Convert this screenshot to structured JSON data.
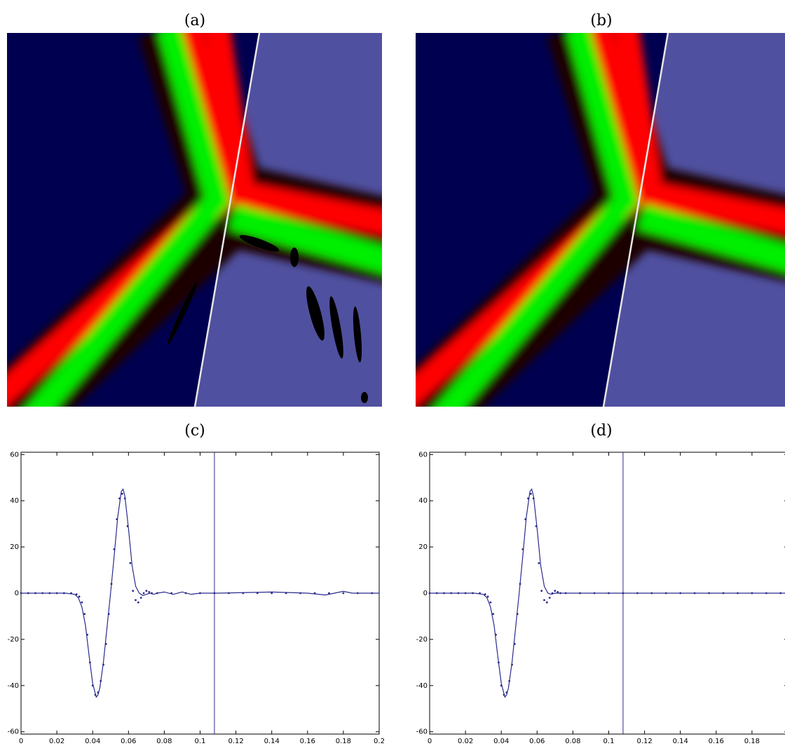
{
  "figure": {
    "labels": [
      "(a)",
      "(b)"
    ]
  },
  "chart_data": [
    {
      "type": "line",
      "title": "(c)",
      "xlim": [
        0,
        0.2
      ],
      "ylim": [
        -61,
        61
      ],
      "xticks": [
        0,
        0.02,
        0.04,
        0.06,
        0.08,
        0.1,
        0.12,
        0.14,
        0.16,
        0.18,
        0.2
      ],
      "yticks": [
        -60,
        -40,
        -20,
        0,
        20,
        40,
        60
      ],
      "vline": 0.108,
      "color": "#2a2a8c",
      "series": [
        {
          "style": "line",
          "color": "#2a2a8c",
          "x": [
            0,
            0.025,
            0.03,
            0.032,
            0.034,
            0.036,
            0.038,
            0.04,
            0.042,
            0.043,
            0.044,
            0.046,
            0.048,
            0.05,
            0.052,
            0.054,
            0.056,
            0.057,
            0.058,
            0.06,
            0.062,
            0.064,
            0.066,
            0.068,
            0.07,
            0.072,
            0.074,
            0.076,
            0.08,
            0.085,
            0.09,
            0.095,
            0.1,
            0.11,
            0.14,
            0.16,
            0.17,
            0.175,
            0.18,
            0.185,
            0.19,
            0.2
          ],
          "values": [
            0,
            0,
            -0.5,
            -2,
            -6,
            -14,
            -27,
            -39,
            -45,
            -44,
            -41,
            -30,
            -15,
            0,
            16,
            33,
            44,
            45,
            42,
            28,
            12,
            3,
            0,
            -1,
            -0.5,
            0,
            -0.5,
            0,
            0.5,
            -0.5,
            0.5,
            -0.5,
            0,
            0,
            0.5,
            0,
            -0.8,
            0,
            0.8,
            0,
            0,
            0
          ]
        },
        {
          "style": "dots",
          "color": "#2a2a8c",
          "x": [
            0,
            0.004,
            0.008,
            0.012,
            0.016,
            0.02,
            0.024,
            0.028,
            0.031,
            0.0325,
            0.034,
            0.0355,
            0.037,
            0.0385,
            0.04,
            0.0415,
            0.043,
            0.0445,
            0.046,
            0.0475,
            0.049,
            0.0505,
            0.052,
            0.0535,
            0.055,
            0.0565,
            0.058,
            0.0595,
            0.061,
            0.0625,
            0.064,
            0.0655,
            0.067,
            0.0685,
            0.07,
            0.0715,
            0.073,
            0.076,
            0.084,
            0.092,
            0.1,
            0.108,
            0.116,
            0.124,
            0.132,
            0.14,
            0.148,
            0.156,
            0.164,
            0.172,
            0.18,
            0.188,
            0.196
          ],
          "values": [
            0,
            0,
            0,
            0,
            0,
            0,
            0,
            0,
            -0.5,
            -1.5,
            -4,
            -9,
            -18,
            -30,
            -40,
            -44,
            -43,
            -38,
            -31,
            -22,
            -9,
            4,
            19,
            32,
            41,
            43,
            41,
            29,
            13,
            1,
            -3,
            -4,
            -2,
            0,
            1,
            0.5,
            0,
            0,
            0,
            0,
            0,
            0,
            0,
            0,
            0,
            0,
            0,
            0,
            0,
            0,
            0,
            0,
            0
          ]
        }
      ]
    },
    {
      "type": "line",
      "title": "(d)",
      "xlim": [
        0,
        0.2
      ],
      "ylim": [
        -61,
        61
      ],
      "xticks": [
        0,
        0.02,
        0.04,
        0.06,
        0.08,
        0.1,
        0.12,
        0.14,
        0.16,
        0.18
      ],
      "yticks": [
        -60,
        -40,
        -20,
        0,
        20,
        40,
        60
      ],
      "vline": 0.108,
      "color": "#2a2a8c",
      "series": [
        {
          "style": "line",
          "color": "#2a2a8c",
          "x": [
            0,
            0.025,
            0.03,
            0.032,
            0.034,
            0.036,
            0.038,
            0.04,
            0.042,
            0.043,
            0.044,
            0.046,
            0.048,
            0.05,
            0.052,
            0.054,
            0.056,
            0.057,
            0.058,
            0.06,
            0.062,
            0.064,
            0.066,
            0.068,
            0.07,
            0.072,
            0.074,
            0.076,
            0.08,
            0.085,
            0.09,
            0.095,
            0.1,
            0.11,
            0.14,
            0.16,
            0.17,
            0.175,
            0.18,
            0.185,
            0.19,
            0.2
          ],
          "values": [
            0,
            0,
            -0.5,
            -2,
            -6,
            -14,
            -27,
            -39,
            -45,
            -44,
            -41,
            -30,
            -15,
            0,
            16,
            33,
            44,
            45,
            42,
            28,
            12,
            3,
            0,
            -0.5,
            0,
            0,
            0,
            0,
            0,
            0,
            0,
            0,
            0,
            0,
            0,
            0,
            0,
            0,
            0,
            0,
            0,
            0
          ]
        },
        {
          "style": "dots",
          "color": "#2a2a8c",
          "x": [
            0,
            0.004,
            0.008,
            0.012,
            0.016,
            0.02,
            0.024,
            0.028,
            0.031,
            0.0325,
            0.034,
            0.0355,
            0.037,
            0.0385,
            0.04,
            0.0415,
            0.043,
            0.0445,
            0.046,
            0.0475,
            0.049,
            0.0505,
            0.052,
            0.0535,
            0.055,
            0.0565,
            0.058,
            0.0595,
            0.061,
            0.0625,
            0.064,
            0.0655,
            0.067,
            0.0685,
            0.07,
            0.0715,
            0.073,
            0.076,
            0.084,
            0.092,
            0.1,
            0.108,
            0.116,
            0.124,
            0.132,
            0.14,
            0.148,
            0.156,
            0.164,
            0.172,
            0.18,
            0.188,
            0.196
          ],
          "values": [
            0,
            0,
            0,
            0,
            0,
            0,
            0,
            0,
            -0.5,
            -1.5,
            -4,
            -9,
            -18,
            -30,
            -40,
            -44,
            -43,
            -38,
            -31,
            -22,
            -9,
            4,
            19,
            32,
            41,
            43,
            41,
            29,
            13,
            1,
            -3,
            -4,
            -2,
            0,
            1,
            0.5,
            0,
            0,
            0,
            0,
            0,
            0,
            0,
            0,
            0,
            0,
            0,
            0,
            0,
            0,
            0,
            0,
            0
          ]
        }
      ]
    }
  ]
}
